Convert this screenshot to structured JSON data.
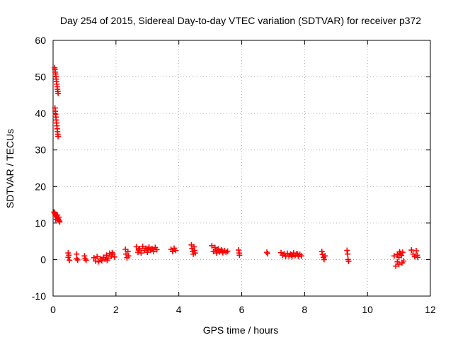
{
  "chart_data": {
    "type": "scatter",
    "title": "Day 254 of 2015, Sidereal Day-to-day VTEC variation (SDTVAR) for receiver p372",
    "xlabel": "GPS time / hours",
    "ylabel": "SDTVAR / TECUs",
    "xlim": [
      0,
      12
    ],
    "ylim": [
      -10,
      60
    ],
    "xticks": [
      0,
      2,
      4,
      6,
      8,
      10,
      12
    ],
    "yticks": [
      -10,
      0,
      10,
      20,
      30,
      40,
      50,
      60
    ],
    "grid": true,
    "marker": "+",
    "color": "#ff0000",
    "series": [
      {
        "name": "SDTVAR",
        "points": [
          [
            0.05,
            52.5
          ],
          [
            0.06,
            52.0
          ],
          [
            0.07,
            51.3
          ],
          [
            0.08,
            50.8
          ],
          [
            0.09,
            50.1
          ],
          [
            0.1,
            49.4
          ],
          [
            0.11,
            48.7
          ],
          [
            0.12,
            48.0
          ],
          [
            0.13,
            47.3
          ],
          [
            0.14,
            46.6
          ],
          [
            0.15,
            46.0
          ],
          [
            0.16,
            45.5
          ],
          [
            0.06,
            41.5
          ],
          [
            0.07,
            40.6
          ],
          [
            0.08,
            39.8
          ],
          [
            0.09,
            39.0
          ],
          [
            0.1,
            38.2
          ],
          [
            0.11,
            37.4
          ],
          [
            0.12,
            36.6
          ],
          [
            0.13,
            35.8
          ],
          [
            0.14,
            35.0
          ],
          [
            0.15,
            34.3
          ],
          [
            0.16,
            33.7
          ],
          [
            0.03,
            13.0
          ],
          [
            0.05,
            12.7
          ],
          [
            0.07,
            12.4
          ],
          [
            0.09,
            12.1
          ],
          [
            0.11,
            11.8
          ],
          [
            0.13,
            11.5
          ],
          [
            0.15,
            11.2
          ],
          [
            0.17,
            10.9
          ],
          [
            0.19,
            10.6
          ],
          [
            0.21,
            10.3
          ],
          [
            0.08,
            11.0
          ],
          [
            0.14,
            12.2
          ],
          [
            0.18,
            11.6
          ],
          [
            0.48,
            1.8
          ],
          [
            0.48,
            0.6
          ],
          [
            0.52,
            -0.2
          ],
          [
            0.5,
            1.2
          ],
          [
            0.75,
            1.5
          ],
          [
            0.75,
            0.3
          ],
          [
            0.78,
            -0.1
          ],
          [
            1.0,
            1.0
          ],
          [
            1.02,
            0.2
          ],
          [
            1.05,
            -0.2
          ],
          [
            1.3,
            0.5
          ],
          [
            1.35,
            -0.4
          ],
          [
            1.4,
            0.8
          ],
          [
            1.45,
            -0.6
          ],
          [
            1.5,
            0.2
          ],
          [
            1.55,
            -0.3
          ],
          [
            1.6,
            0.6
          ],
          [
            1.65,
            0.1
          ],
          [
            1.7,
            1.2
          ],
          [
            1.75,
            0.4
          ],
          [
            1.8,
            1.7
          ],
          [
            1.85,
            0.9
          ],
          [
            1.9,
            1.5
          ],
          [
            1.95,
            0.7
          ],
          [
            1.72,
            -0.2
          ],
          [
            1.88,
            1.9
          ],
          [
            2.3,
            2.8
          ],
          [
            2.32,
            1.5
          ],
          [
            2.35,
            0.5
          ],
          [
            2.38,
            2.2
          ],
          [
            2.4,
            1.0
          ],
          [
            2.65,
            3.5
          ],
          [
            2.7,
            2.0
          ],
          [
            2.75,
            3.0
          ],
          [
            2.8,
            1.8
          ],
          [
            2.85,
            3.6
          ],
          [
            2.9,
            2.5
          ],
          [
            2.95,
            3.1
          ],
          [
            3.0,
            2.0
          ],
          [
            3.05,
            3.4
          ],
          [
            3.1,
            2.6
          ],
          [
            3.15,
            3.0
          ],
          [
            3.2,
            2.2
          ],
          [
            3.25,
            3.3
          ],
          [
            3.3,
            2.7
          ],
          [
            2.72,
            2.6
          ],
          [
            3.02,
            2.9
          ],
          [
            3.75,
            2.8
          ],
          [
            3.8,
            2.2
          ],
          [
            3.85,
            3.1
          ],
          [
            3.9,
            2.5
          ],
          [
            4.4,
            4.0
          ],
          [
            4.42,
            3.0
          ],
          [
            4.44,
            2.2
          ],
          [
            4.46,
            1.5
          ],
          [
            4.48,
            3.5
          ],
          [
            4.5,
            2.5
          ],
          [
            4.52,
            1.8
          ],
          [
            5.05,
            3.8
          ],
          [
            5.1,
            2.2
          ],
          [
            5.15,
            3.3
          ],
          [
            5.2,
            1.8
          ],
          [
            5.25,
            2.9
          ],
          [
            5.3,
            2.1
          ],
          [
            5.35,
            2.6
          ],
          [
            5.4,
            1.9
          ],
          [
            5.45,
            2.4
          ],
          [
            5.5,
            2.0
          ],
          [
            5.55,
            2.3
          ],
          [
            5.18,
            2.6
          ],
          [
            5.38,
            2.3
          ],
          [
            5.9,
            2.6
          ],
          [
            5.92,
            1.8
          ],
          [
            5.93,
            1.2
          ],
          [
            6.8,
            2.0
          ],
          [
            6.82,
            1.6
          ],
          [
            7.25,
            1.9
          ],
          [
            7.3,
            1.2
          ],
          [
            7.35,
            1.6
          ],
          [
            7.4,
            0.9
          ],
          [
            7.45,
            1.7
          ],
          [
            7.5,
            1.0
          ],
          [
            7.55,
            1.5
          ],
          [
            7.6,
            0.8
          ],
          [
            7.65,
            1.8
          ],
          [
            7.7,
            1.1
          ],
          [
            7.75,
            1.6
          ],
          [
            7.8,
            0.9
          ],
          [
            7.85,
            1.4
          ],
          [
            7.9,
            1.0
          ],
          [
            7.58,
            1.3
          ],
          [
            7.78,
            1.5
          ],
          [
            8.55,
            2.2
          ],
          [
            8.57,
            1.4
          ],
          [
            8.6,
            0.6
          ],
          [
            8.62,
            0.0
          ],
          [
            8.65,
            1.0
          ],
          [
            9.35,
            2.5
          ],
          [
            9.37,
            1.5
          ],
          [
            9.38,
            0.0
          ],
          [
            9.4,
            -0.5
          ],
          [
            10.85,
            1.0
          ],
          [
            10.9,
            -1.8
          ],
          [
            10.95,
            1.4
          ],
          [
            11.0,
            -1.3
          ],
          [
            11.05,
            1.7
          ],
          [
            11.1,
            -0.9
          ],
          [
            11.12,
            2.0
          ],
          [
            11.15,
            -0.4
          ],
          [
            11.0,
            0.6
          ],
          [
            11.08,
            1.1
          ],
          [
            10.95,
            -0.6
          ],
          [
            11.02,
            2.1
          ],
          [
            11.4,
            2.6
          ],
          [
            11.45,
            1.5
          ],
          [
            11.5,
            0.8
          ],
          [
            11.55,
            2.4
          ],
          [
            11.58,
            1.2
          ],
          [
            11.6,
            0.6
          ]
        ]
      }
    ]
  }
}
